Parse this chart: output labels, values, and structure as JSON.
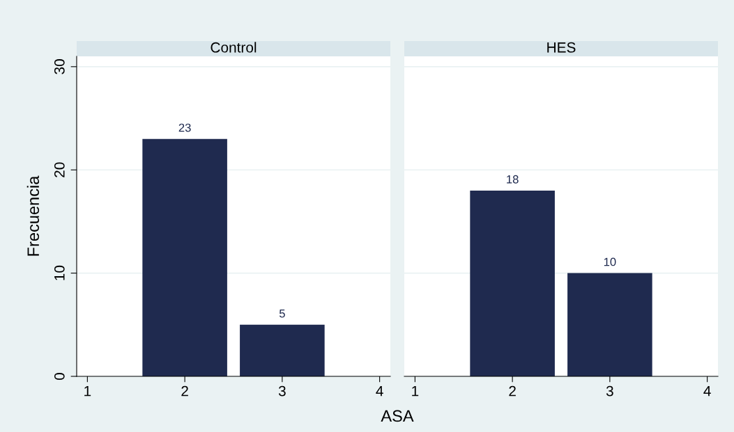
{
  "chart_data": [
    {
      "type": "bar",
      "title": "Control",
      "xlabel": "ASA",
      "ylabel": "Frecuencia",
      "categories": [
        "1",
        "2",
        "3",
        "4"
      ],
      "values": [
        null,
        23,
        5,
        null
      ],
      "color": "#1f2a4f",
      "ylim": [
        0,
        31
      ],
      "yticks": [
        0,
        10,
        20,
        30
      ],
      "grid": "y",
      "data_labels": true
    },
    {
      "type": "bar",
      "title": "HES",
      "categories": [
        "1",
        "2",
        "3",
        "4"
      ],
      "values": [
        null,
        18,
        10,
        null
      ],
      "color": "#1f2a4f",
      "ylim": [
        0,
        31
      ],
      "yticks": [
        0,
        10,
        20,
        30
      ],
      "grid": "y",
      "data_labels": true,
      "tick_labels": "x"
    }
  ]
}
